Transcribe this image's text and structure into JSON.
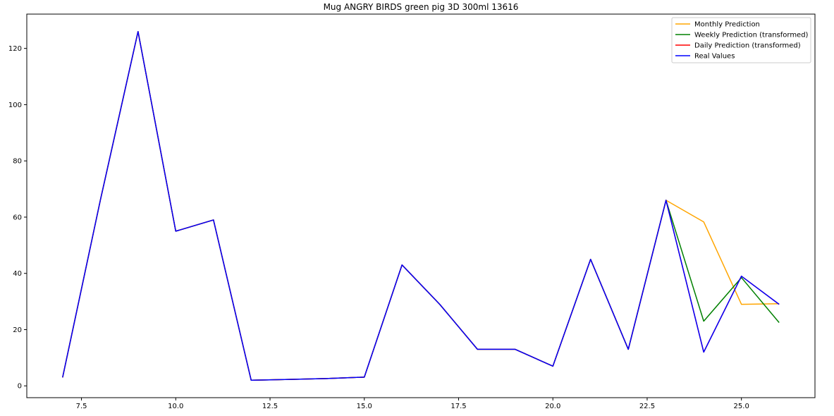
{
  "chart_data": {
    "type": "line",
    "title": "Mug ANGRY BIRDS green pig 3D 300ml 13616",
    "xlabel": "",
    "ylabel": "",
    "xlim": [
      6.05,
      26.95
    ],
    "ylim": [
      -4.2,
      132.2
    ],
    "x_ticks": [
      7.5,
      10.0,
      12.5,
      15.0,
      17.5,
      20.0,
      22.5,
      25.0
    ],
    "x_tick_labels": [
      "7.5",
      "10.0",
      "12.5",
      "15.0",
      "17.5",
      "20.0",
      "22.5",
      "25.0"
    ],
    "y_ticks": [
      0,
      20,
      40,
      60,
      80,
      100,
      120
    ],
    "y_tick_labels": [
      "0",
      "20",
      "40",
      "60",
      "80",
      "100",
      "120"
    ],
    "grid": false,
    "legend_position": "top-right",
    "series": [
      {
        "name": "Monthly Prediction",
        "color": "#ffa500",
        "x": [
          7,
          8,
          9,
          10,
          11,
          12,
          13,
          14,
          15,
          16,
          17,
          18,
          19,
          20,
          21,
          22,
          23,
          24,
          25,
          26
        ],
        "values": [
          3,
          66,
          126,
          55,
          59,
          2,
          2.3,
          2.6,
          3.1,
          43,
          29,
          13,
          13,
          7,
          45,
          13,
          66,
          58.3,
          29,
          29.2
        ]
      },
      {
        "name": "Weekly Prediction (transformed)",
        "color": "#008000",
        "x": [
          7,
          8,
          9,
          10,
          11,
          12,
          13,
          14,
          15,
          16,
          17,
          18,
          19,
          20,
          21,
          22,
          23,
          24,
          25,
          26
        ],
        "values": [
          3,
          66,
          126,
          55,
          59,
          2,
          2.3,
          2.6,
          3.1,
          43,
          29,
          13,
          13,
          7,
          45,
          13,
          66,
          23,
          38.5,
          22.5
        ]
      },
      {
        "name": "Daily Prediction (transformed)",
        "color": "#ff0000",
        "x": [
          7,
          8,
          9,
          10,
          11,
          12,
          13,
          14,
          15,
          16,
          17,
          18,
          19,
          20,
          21,
          22,
          23,
          24,
          25,
          26
        ],
        "values": [
          3,
          66,
          126,
          55,
          59,
          2,
          2.3,
          2.6,
          3.1,
          43,
          29,
          13,
          13,
          7,
          45,
          13,
          66,
          12,
          39,
          29
        ]
      },
      {
        "name": "Real Values",
        "color": "#0000ff",
        "x": [
          7,
          8,
          9,
          10,
          11,
          12,
          13,
          14,
          15,
          16,
          17,
          18,
          19,
          20,
          21,
          22,
          23,
          24,
          25,
          26
        ],
        "values": [
          3,
          66,
          126,
          55,
          59,
          2,
          2.3,
          2.6,
          3.1,
          43,
          29,
          13,
          13,
          7,
          45,
          13,
          66,
          12,
          39,
          29
        ]
      }
    ]
  }
}
